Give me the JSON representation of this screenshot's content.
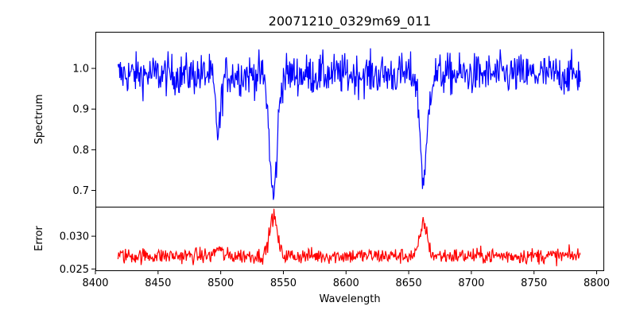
{
  "chart_data": {
    "type": "line",
    "title": "20071210_0329m69_011",
    "xlabel": "Wavelength",
    "x_ticks": [
      8400,
      8450,
      8500,
      8550,
      8600,
      8650,
      8700,
      8750,
      8800
    ],
    "xlim": [
      8400,
      8806
    ],
    "x_range": [
      8418,
      8787
    ],
    "panels": [
      {
        "ylabel": "Spectrum",
        "ylim": [
          0.66,
          1.09
        ],
        "y_ticks": [
          0.7,
          0.8,
          0.9,
          1.0
        ],
        "y_tick_labels": [
          "0.7",
          "0.8",
          "0.9",
          "1.0"
        ],
        "color": "#0000ff",
        "series": [
          {
            "baseline": 0.985,
            "noise": 0.025,
            "features": [
              {
                "center": 8498,
                "depth": 0.14,
                "width": 2.2
              },
              {
                "center": 8542,
                "depth": 0.3,
                "width": 3.0
              },
              {
                "center": 8662,
                "depth": 0.26,
                "width": 2.8
              }
            ]
          }
        ]
      },
      {
        "ylabel": "Error",
        "ylim": [
          0.0248,
          0.0345
        ],
        "y_ticks": [
          0.025,
          0.03
        ],
        "y_tick_labels": [
          "0.025",
          "0.030"
        ],
        "color": "#ff0000",
        "series": [
          {
            "baseline": 0.027,
            "noise": 0.0006,
            "features": [
              {
                "center": 8498,
                "height": 0.0012,
                "width": 2.2
              },
              {
                "center": 8542,
                "height": 0.006,
                "width": 3.0
              },
              {
                "center": 8662,
                "height": 0.005,
                "width": 2.8
              }
            ]
          }
        ]
      }
    ]
  }
}
